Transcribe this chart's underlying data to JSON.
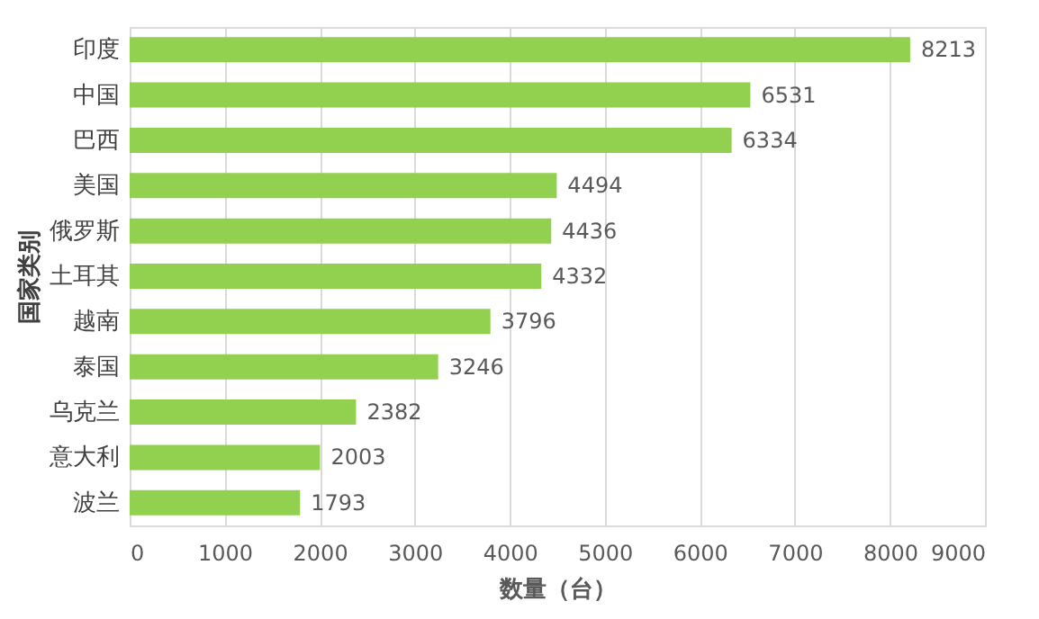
{
  "chart_data": {
    "type": "bar",
    "orientation": "horizontal",
    "xlabel": "数量（台）",
    "ylabel": "国家类别",
    "categories": [
      "印度",
      "中国",
      "巴西",
      "美国",
      "俄罗斯",
      "土耳其",
      "越南",
      "泰国",
      "乌克兰",
      "意大利",
      "波兰"
    ],
    "values": [
      8213,
      6531,
      6334,
      4494,
      4436,
      4332,
      3796,
      3246,
      2382,
      2003,
      1793
    ],
    "color": "#92d050",
    "xlim": [
      0,
      9000
    ],
    "xticks": [
      0,
      1000,
      2000,
      3000,
      4000,
      5000,
      6000,
      7000,
      8000,
      9000
    ],
    "grid": "x",
    "data_labels": true
  }
}
